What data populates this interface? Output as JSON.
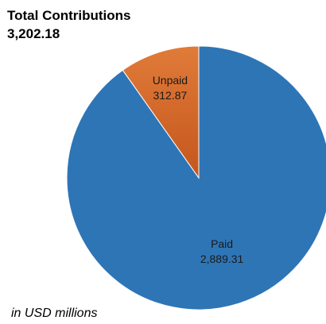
{
  "title": "Total Contributions",
  "total": "3,202.18",
  "footnote": "in USD millions",
  "chart_data": {
    "type": "pie",
    "title": "Total Contributions",
    "categories": [
      "Paid",
      "Unpaid"
    ],
    "values": [
      2889.31,
      312.87
    ],
    "value_labels": [
      "2,889.31",
      "312.87"
    ],
    "colors": {
      "Paid": "#2E75B6",
      "Unpaid": "#E07B39",
      "Unpaid_dark": "#C5561D"
    },
    "start_angle_deg": 0,
    "direction": "clockwise",
    "legend": "none",
    "total": 3202.18,
    "units": "USD millions"
  }
}
